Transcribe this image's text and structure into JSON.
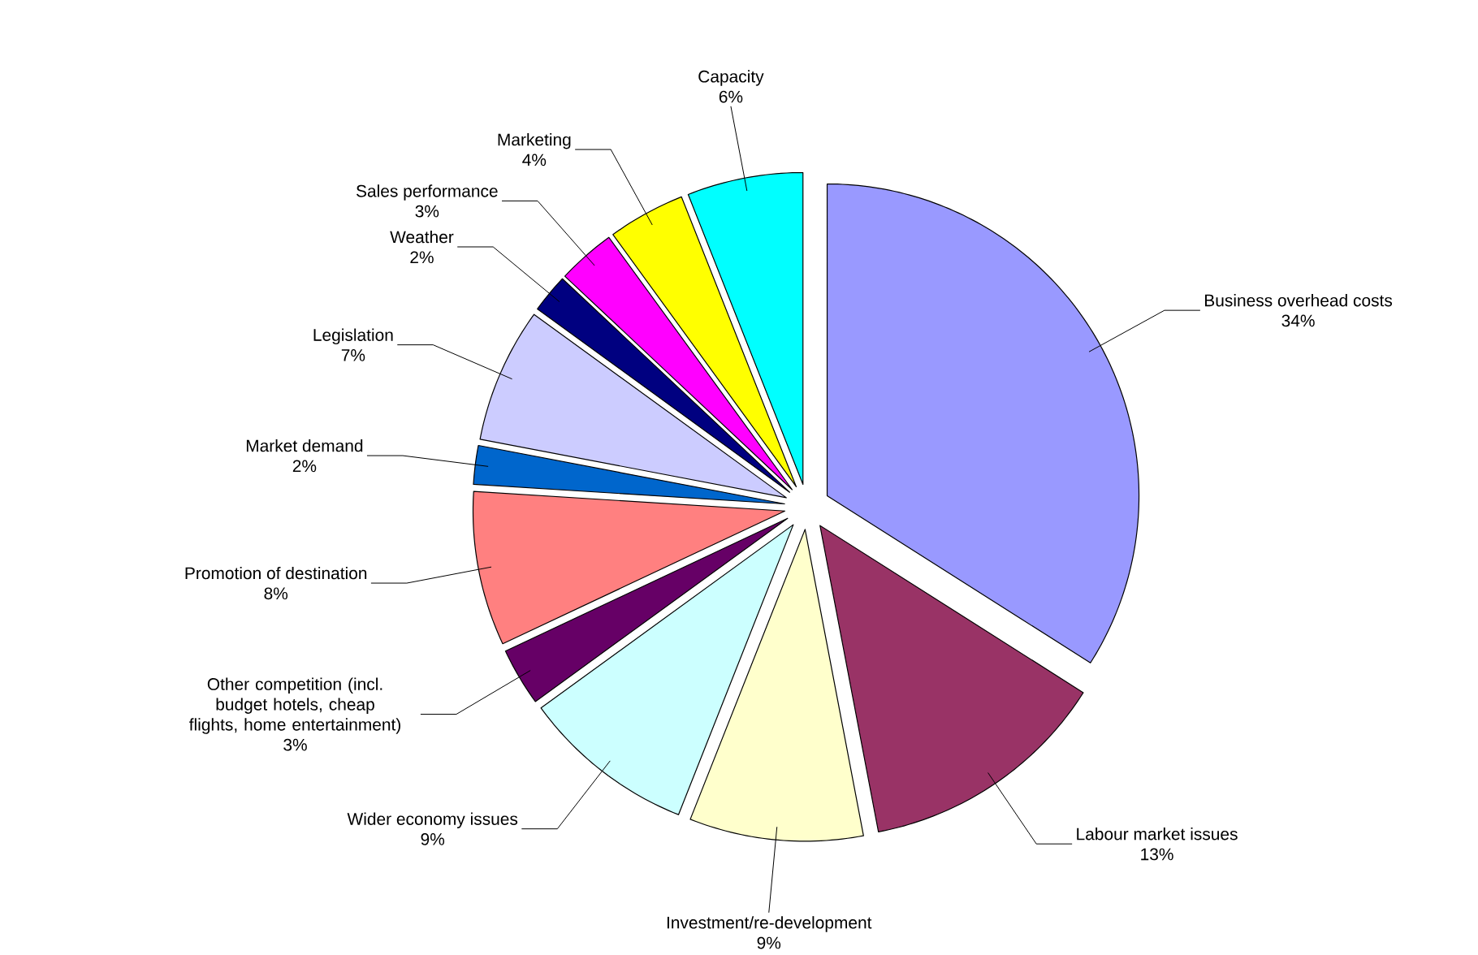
{
  "chart_data": {
    "type": "pie",
    "categories": [
      "Business overhead costs",
      "Labour market issues",
      "Investment/re-development",
      "Wider economy issues",
      "Other competition (incl. budget hotels, cheap flights, home entertainment)",
      "Promotion of destination",
      "Market demand",
      "Legislation",
      "Weather",
      "Sales performance",
      "Marketing",
      "Capacity"
    ],
    "values": [
      34,
      13,
      9,
      9,
      3,
      8,
      2,
      7,
      2,
      3,
      4,
      6
    ],
    "value_labels": [
      "34%",
      "13%",
      "9%",
      "9%",
      "3%",
      "8%",
      "2%",
      "7%",
      "2%",
      "3%",
      "4%",
      "6%"
    ],
    "colors": [
      "#9999ff",
      "#993366",
      "#ffffcc",
      "#ccffff",
      "#660066",
      "#ff8080",
      "#0066cc",
      "#ccccff",
      "#000080",
      "#ff00ff",
      "#ffff00",
      "#00ffff"
    ]
  }
}
